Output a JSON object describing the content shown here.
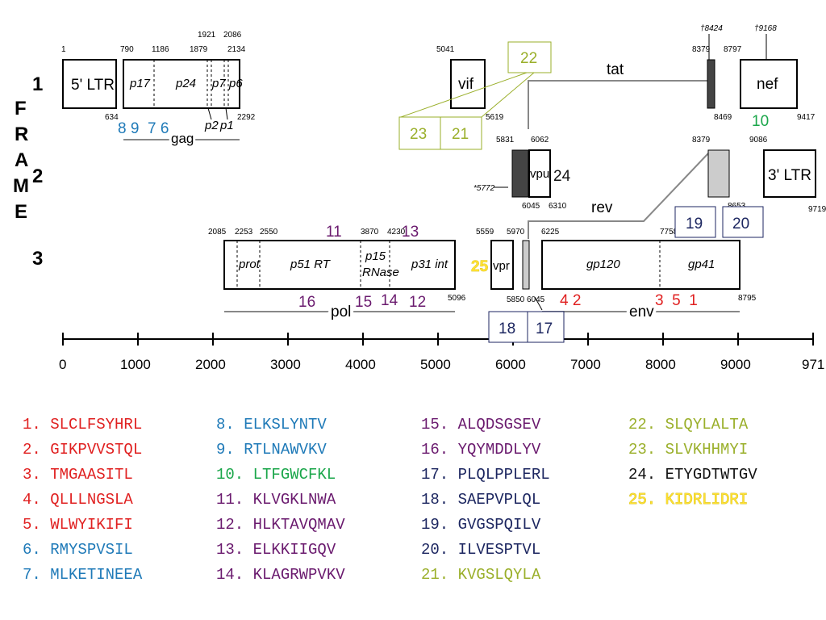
{
  "frame_label": "FRAME",
  "frames": [
    "1",
    "2",
    "3"
  ],
  "genes": {
    "ltr5": "5' LTR",
    "p17": "p17",
    "p24": "p24",
    "p7": "p7",
    "p6": "p6",
    "p2": "p2",
    "p1": "p1",
    "gag": "gag",
    "vif": "vif",
    "tat": "tat",
    "nef": "nef",
    "vpu": "vpu",
    "rev": "rev",
    "ltr3": "3' LTR",
    "prot": "prot",
    "p51rt": "p51 RT",
    "p15": "p15",
    "rnase": "RNase",
    "p31int": "p31 int",
    "vpr": "vpr",
    "gp120": "gp120",
    "gp41": "gp41",
    "pol": "pol",
    "env": "env"
  },
  "positions": {
    "n1": "1",
    "n790": "790",
    "n1186": "1186",
    "n1921": "1921",
    "n1879": "1879",
    "n2086": "2086",
    "n2134": "2134",
    "n634": "634",
    "n2292": "2292",
    "n5041": "5041",
    "n5619": "5619",
    "n8424": "†8424",
    "n9168": "†9168",
    "n8379a": "8379",
    "n8797": "8797",
    "n8469": "8469",
    "n9417": "9417",
    "n5831": "5831",
    "n6062": "6062",
    "n6045a": "6045",
    "n6310": "6310",
    "n5772": "*5772",
    "n8379b": "8379",
    "n9086": "9086",
    "n8653": "8653",
    "n9719": "9719",
    "n2085": "2085",
    "n2253": "2253",
    "n2550": "2550",
    "n3870": "3870",
    "n4230": "4230",
    "n5559": "5559",
    "n5970": "5970",
    "n6225": "6225",
    "n7758": "7758",
    "n5096": "5096",
    "n5850": "5850",
    "n6045b": "6045",
    "n8795": "8795"
  },
  "axis_ticks": [
    "0",
    "1000",
    "2000",
    "3000",
    "4000",
    "5000",
    "6000",
    "7000",
    "8000",
    "9000",
    "971"
  ],
  "epitope_marks": {
    "m8976": "8 9  7 6",
    "m10": "10",
    "m22": "22",
    "m23": "23",
    "m21": "21",
    "m24": "24",
    "m19": "19",
    "m20": "20",
    "m11": "11",
    "m13": "13",
    "m25": "25",
    "m16": "16",
    "m15": "15",
    "m14": "14",
    "m12": "12",
    "m42": "4 2",
    "m351": "3  5  1",
    "m18": "18",
    "m17": "17"
  },
  "peptides": [
    {
      "num": "1.",
      "seq": "SLCLFSYHRL"
    },
    {
      "num": "2.",
      "seq": "GIKPVVSTQL"
    },
    {
      "num": "3.",
      "seq": "TMGAASITL"
    },
    {
      "num": "4.",
      "seq": "QLLLNGSLA"
    },
    {
      "num": "5.",
      "seq": "WLWYIKIFI"
    },
    {
      "num": "6.",
      "seq": "RMYSPVSIL"
    },
    {
      "num": "7.",
      "seq": "MLKETINEEA"
    },
    {
      "num": "8.",
      "seq": "ELKSLYNTV"
    },
    {
      "num": "9.",
      "seq": "RTLNAWVKV"
    },
    {
      "num": "10.",
      "seq": "LTFGWCFKL"
    },
    {
      "num": "11.",
      "seq": "KLVGKLNWA"
    },
    {
      "num": "12.",
      "seq": "HLKTAVQMAV"
    },
    {
      "num": "13.",
      "seq": "ELKKIIGQV"
    },
    {
      "num": "14.",
      "seq": "KLAGRWPVKV"
    },
    {
      "num": "15.",
      "seq": "ALQDSGSEV"
    },
    {
      "num": "16.",
      "seq": "YQYMDDLYV"
    },
    {
      "num": "17.",
      "seq": "PLQLPPLERL"
    },
    {
      "num": "18.",
      "seq": "SAEPVPLQL"
    },
    {
      "num": "19.",
      "seq": "GVGSPQILV"
    },
    {
      "num": "20.",
      "seq": "ILVESPTVL"
    },
    {
      "num": "21.",
      "seq": "KVGSLQYLA"
    },
    {
      "num": "22.",
      "seq": "SLQYLALTA"
    },
    {
      "num": "23.",
      "seq": "SLVKHHMYI"
    },
    {
      "num": "24.",
      "seq": "ETYGDTWTGV"
    },
    {
      "num": "25.",
      "seq": "KIDRLIDRI"
    }
  ],
  "colors": {
    "red": "#e02020",
    "blue": "#1f7ab8",
    "green": "#1aa64a",
    "purple": "#6a1a6e",
    "navy": "#1c2660",
    "olive": "#9aaf2a",
    "black": "#111111",
    "yellow": "#ffe033"
  }
}
